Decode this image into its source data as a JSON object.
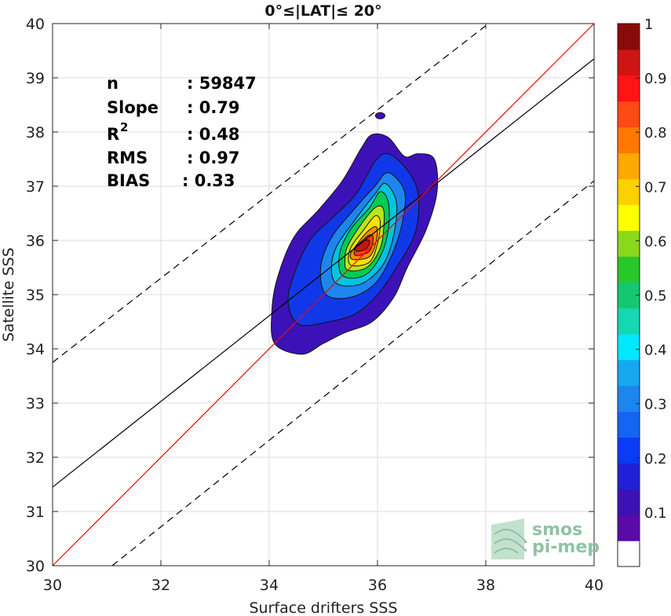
{
  "chart_data": {
    "type": "contour-scatter",
    "title": "0°≤|LAT|≤ 20°",
    "xlabel": "Surface drifters SSS",
    "ylabel": "Satellite SSS",
    "xlim": [
      30,
      40
    ],
    "ylim": [
      30,
      40
    ],
    "xticks": [
      "30",
      "32",
      "34",
      "36",
      "38",
      "40"
    ],
    "yticks": [
      "30",
      "31",
      "32",
      "33",
      "34",
      "35",
      "36",
      "37",
      "38",
      "39",
      "40"
    ],
    "grid": true,
    "stats": [
      {
        "label": "n",
        "value": ": 59847"
      },
      {
        "label": "Slope",
        "value": ": 0.79"
      },
      {
        "label": "R",
        "sup": "2",
        "value": ": 0.48"
      },
      {
        "label": "RMS",
        "value": ": 0.97"
      },
      {
        "label": "BIAS",
        "value": ": 0.33"
      }
    ],
    "lines": {
      "identity": {
        "color": "#ff0000",
        "points": [
          [
            30,
            30
          ],
          [
            40,
            40
          ]
        ]
      },
      "fit": {
        "color": "#000000",
        "points": [
          [
            30,
            31.45
          ],
          [
            40,
            39.35
          ]
        ]
      },
      "upper_bound": {
        "style": "dashed",
        "points": [
          [
            30,
            33.75
          ],
          [
            38.05,
            40
          ]
        ]
      },
      "lower_bound": {
        "style": "dashed",
        "points": [
          [
            31.1,
            30
          ],
          [
            40,
            37.1
          ]
        ]
      }
    },
    "outlier_blob": {
      "x": 36.05,
      "y": 38.3
    },
    "contours": [
      {
        "level": 0.05,
        "color": "#3c12b8",
        "points": [
          [
            34.6,
            33.9
          ],
          [
            35.0,
            34.1
          ],
          [
            35.4,
            34.3
          ],
          [
            35.9,
            34.5
          ],
          [
            36.3,
            34.95
          ],
          [
            36.55,
            35.5
          ],
          [
            36.9,
            36.2
          ],
          [
            37.1,
            36.9
          ],
          [
            37.05,
            37.5
          ],
          [
            36.75,
            37.6
          ],
          [
            36.5,
            37.55
          ],
          [
            36.2,
            37.9
          ],
          [
            35.9,
            37.95
          ],
          [
            35.7,
            37.7
          ],
          [
            35.35,
            37.1
          ],
          [
            34.9,
            36.55
          ],
          [
            34.45,
            36.05
          ],
          [
            34.15,
            35.3
          ],
          [
            34.05,
            34.7
          ],
          [
            34.1,
            34.1
          ]
        ]
      },
      {
        "level": 0.15,
        "color": "#1138e8",
        "points": [
          [
            34.55,
            34.45
          ],
          [
            35.1,
            34.5
          ],
          [
            35.6,
            34.65
          ],
          [
            36.0,
            35.0
          ],
          [
            36.35,
            35.5
          ],
          [
            36.7,
            36.15
          ],
          [
            36.75,
            36.85
          ],
          [
            36.55,
            37.3
          ],
          [
            36.2,
            37.6
          ],
          [
            35.95,
            37.45
          ],
          [
            35.6,
            36.85
          ],
          [
            35.15,
            36.4
          ],
          [
            34.75,
            36.0
          ],
          [
            34.45,
            35.35
          ],
          [
            34.35,
            34.85
          ]
        ]
      },
      {
        "level": 0.25,
        "color": "#1c86ee",
        "points": [
          [
            35.05,
            35.0
          ],
          [
            35.5,
            34.95
          ],
          [
            35.95,
            35.2
          ],
          [
            36.25,
            35.7
          ],
          [
            36.45,
            36.3
          ],
          [
            36.5,
            36.9
          ],
          [
            36.2,
            37.25
          ],
          [
            35.95,
            37.0
          ],
          [
            35.55,
            36.55
          ],
          [
            35.15,
            36.05
          ],
          [
            34.95,
            35.5
          ]
        ]
      },
      {
        "level": 0.35,
        "color": "#00c4e0",
        "points": [
          [
            35.25,
            35.2
          ],
          [
            35.7,
            35.2
          ],
          [
            36.1,
            35.55
          ],
          [
            36.3,
            36.1
          ],
          [
            36.35,
            36.7
          ],
          [
            36.15,
            37.05
          ],
          [
            35.95,
            36.85
          ],
          [
            35.6,
            36.4
          ],
          [
            35.25,
            35.9
          ],
          [
            35.15,
            35.5
          ]
        ]
      },
      {
        "level": 0.45,
        "color": "#00cc55",
        "points": [
          [
            35.35,
            35.35
          ],
          [
            35.75,
            35.35
          ],
          [
            36.05,
            35.7
          ],
          [
            36.2,
            36.2
          ],
          [
            36.2,
            36.7
          ],
          [
            36.05,
            36.9
          ],
          [
            35.85,
            36.6
          ],
          [
            35.5,
            36.2
          ],
          [
            35.3,
            35.75
          ]
        ]
      },
      {
        "level": 0.55,
        "color": "#b8e61a",
        "points": [
          [
            35.45,
            35.45
          ],
          [
            35.8,
            35.5
          ],
          [
            36.05,
            35.85
          ],
          [
            36.12,
            36.3
          ],
          [
            36.1,
            36.6
          ],
          [
            35.95,
            36.6
          ],
          [
            35.7,
            36.3
          ],
          [
            35.45,
            35.9
          ],
          [
            35.4,
            35.65
          ]
        ]
      },
      {
        "level": 0.65,
        "color": "#ffe000",
        "points": [
          [
            35.5,
            35.55
          ],
          [
            35.85,
            35.6
          ],
          [
            36.0,
            35.95
          ],
          [
            36.05,
            36.35
          ],
          [
            35.95,
            36.45
          ],
          [
            35.75,
            36.2
          ],
          [
            35.5,
            35.85
          ]
        ]
      },
      {
        "level": 0.75,
        "color": "#ff8c00",
        "points": [
          [
            35.55,
            35.65
          ],
          [
            35.85,
            35.7
          ],
          [
            35.98,
            36.0
          ],
          [
            35.98,
            36.25
          ],
          [
            35.8,
            36.15
          ],
          [
            35.6,
            35.9
          ],
          [
            35.5,
            35.75
          ]
        ]
      },
      {
        "level": 0.85,
        "color": "#ff3a10",
        "points": [
          [
            35.6,
            35.72
          ],
          [
            35.85,
            35.8
          ],
          [
            35.92,
            36.05
          ],
          [
            35.85,
            36.1
          ],
          [
            35.7,
            35.98
          ],
          [
            35.58,
            35.85
          ]
        ]
      },
      {
        "level": 0.95,
        "color": "#c81414",
        "points": [
          [
            35.62,
            35.8
          ],
          [
            35.8,
            35.85
          ],
          [
            35.85,
            36.0
          ],
          [
            35.72,
            35.98
          ],
          [
            35.6,
            35.88
          ]
        ]
      }
    ],
    "colorbar": {
      "range": [
        0,
        1
      ],
      "ticks": [
        "0.1",
        "0.2",
        "0.3",
        "0.4",
        "0.5",
        "0.6",
        "0.7",
        "0.8",
        "0.9",
        "1"
      ],
      "colors": [
        "#ffffff",
        "#5a0aa8",
        "#3c12b8",
        "#2020d8",
        "#0a3cf5",
        "#1464f5",
        "#1c86ee",
        "#14a8f0",
        "#00e8ff",
        "#14d8b4",
        "#14c870",
        "#28c828",
        "#8ad81a",
        "#ffff00",
        "#ffd000",
        "#ffa800",
        "#ff7800",
        "#ff4a14",
        "#ff1414",
        "#d01414",
        "#8a0a0a"
      ]
    },
    "logo": {
      "line1": "smos",
      "line2": "pi-mep"
    }
  }
}
